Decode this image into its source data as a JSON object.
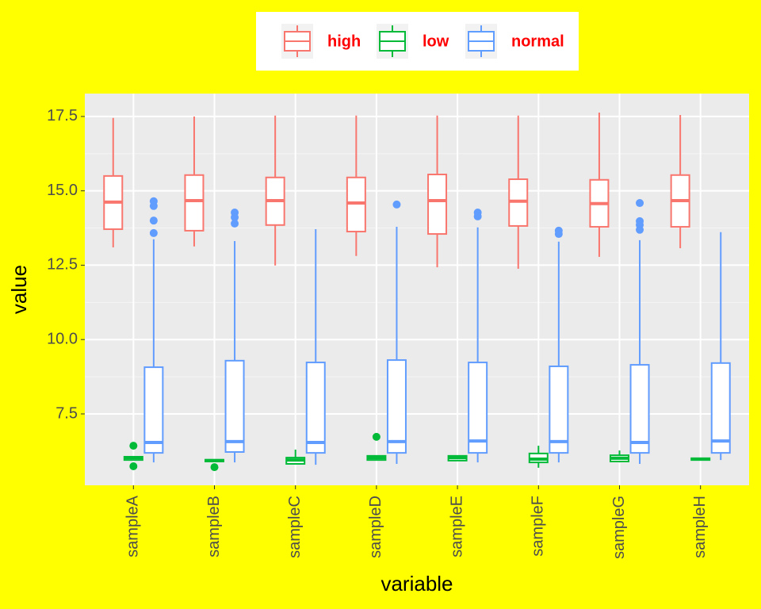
{
  "chart_data": {
    "type": "boxplot",
    "x_label": "variable",
    "y_label": "value",
    "categories": [
      "sampleA",
      "sampleB",
      "sampleC",
      "sampleD",
      "sampleE",
      "sampleF",
      "sampleG",
      "sampleH"
    ],
    "ylim": [
      5.1,
      18.27
    ],
    "yticks": [
      7.5,
      {
        "value": 10,
        "label": "10.0"
      },
      12.5,
      {
        "value": 15,
        "label": "15.0"
      },
      17.5
    ],
    "grid": true,
    "legend_position": "top",
    "legend_text_color": "#ff0000",
    "background": "#ffff00",
    "series": [
      {
        "name": "high",
        "color": "#f8766d",
        "values": [
          {
            "whisker_low": 13.1,
            "q1": 13.71,
            "median": 14.62,
            "q3": 15.5,
            "whisker_high": 17.45,
            "outliers": []
          },
          {
            "whisker_low": 13.13,
            "q1": 13.66,
            "median": 14.67,
            "q3": 15.53,
            "whisker_high": 17.5,
            "outliers": []
          },
          {
            "whisker_low": 12.49,
            "q1": 13.85,
            "median": 14.67,
            "q3": 15.45,
            "whisker_high": 17.53,
            "outliers": []
          },
          {
            "whisker_low": 12.81,
            "q1": 13.63,
            "median": 14.59,
            "q3": 15.45,
            "whisker_high": 17.53,
            "outliers": []
          },
          {
            "whisker_low": 12.43,
            "q1": 13.55,
            "median": 14.67,
            "q3": 15.55,
            "whisker_high": 17.53,
            "outliers": []
          },
          {
            "whisker_low": 12.38,
            "q1": 13.82,
            "median": 14.65,
            "q3": 15.39,
            "whisker_high": 17.53,
            "outliers": []
          },
          {
            "whisker_low": 12.78,
            "q1": 13.79,
            "median": 14.57,
            "q3": 15.37,
            "whisker_high": 17.63,
            "outliers": []
          },
          {
            "whisker_low": 13.07,
            "q1": 13.79,
            "median": 14.67,
            "q3": 15.53,
            "whisker_high": 17.55,
            "outliers": []
          }
        ]
      },
      {
        "name": "low",
        "color": "#00ba38",
        "values": [
          {
            "whisker_low": 5.93,
            "q1": 5.95,
            "median": 6.03,
            "q3": 6.06,
            "whisker_high": 6.08,
            "outliers": [
              6.43,
              5.74
            ]
          },
          {
            "whisker_low": 5.88,
            "q1": 5.9,
            "median": 5.93,
            "q3": 5.96,
            "whisker_high": 5.97,
            "outliers": [
              5.71
            ]
          },
          {
            "whisker_low": 5.8,
            "q1": 5.82,
            "median": 5.95,
            "q3": 6.03,
            "whisker_high": 6.3,
            "outliers": []
          },
          {
            "whisker_low": 5.93,
            "q1": 5.95,
            "median": 6.03,
            "q3": 6.09,
            "whisker_high": 6.1,
            "outliers": [
              6.73
            ]
          },
          {
            "whisker_low": 5.92,
            "q1": 5.93,
            "median": 6.03,
            "q3": 6.09,
            "whisker_high": 6.1,
            "outliers": []
          },
          {
            "whisker_low": 5.69,
            "q1": 5.87,
            "median": 5.98,
            "q3": 6.17,
            "whisker_high": 6.43,
            "outliers": []
          },
          {
            "whisker_low": 5.87,
            "q1": 5.9,
            "median": 6.01,
            "q3": 6.11,
            "whisker_high": 6.27,
            "outliers": []
          },
          {
            "whisker_low": 5.94,
            "q1": 5.95,
            "median": 5.98,
            "q3": 6.01,
            "whisker_high": 6.02,
            "outliers": []
          }
        ]
      },
      {
        "name": "normal",
        "color": "#619cff",
        "values": [
          {
            "whisker_low": 5.87,
            "q1": 6.19,
            "median": 6.54,
            "q3": 9.07,
            "whisker_high": 13.37,
            "outliers": [
              14.65,
              14.49,
              14.0,
              13.58
            ]
          },
          {
            "whisker_low": 5.87,
            "q1": 6.22,
            "median": 6.57,
            "q3": 9.29,
            "whisker_high": 13.31,
            "outliers": [
              14.27,
              14.11,
              13.9
            ]
          },
          {
            "whisker_low": 5.79,
            "q1": 6.19,
            "median": 6.54,
            "q3": 9.23,
            "whisker_high": 13.71,
            "outliers": []
          },
          {
            "whisker_low": 5.82,
            "q1": 6.19,
            "median": 6.57,
            "q3": 9.31,
            "whisker_high": 13.79,
            "outliers": [
              14.54
            ]
          },
          {
            "whisker_low": 5.87,
            "q1": 6.19,
            "median": 6.59,
            "q3": 9.23,
            "whisker_high": 13.77,
            "outliers": [
              14.27,
              14.14
            ]
          },
          {
            "whisker_low": 5.87,
            "q1": 6.19,
            "median": 6.57,
            "q3": 9.1,
            "whisker_high": 13.29,
            "outliers": [
              13.66,
              13.55
            ]
          },
          {
            "whisker_low": 5.82,
            "q1": 6.19,
            "median": 6.54,
            "q3": 9.15,
            "whisker_high": 13.34,
            "outliers": [
              14.59,
              13.98,
              13.85,
              13.69
            ]
          },
          {
            "whisker_low": 5.95,
            "q1": 6.19,
            "median": 6.59,
            "q3": 9.21,
            "whisker_high": 13.61,
            "outliers": []
          }
        ]
      }
    ]
  }
}
